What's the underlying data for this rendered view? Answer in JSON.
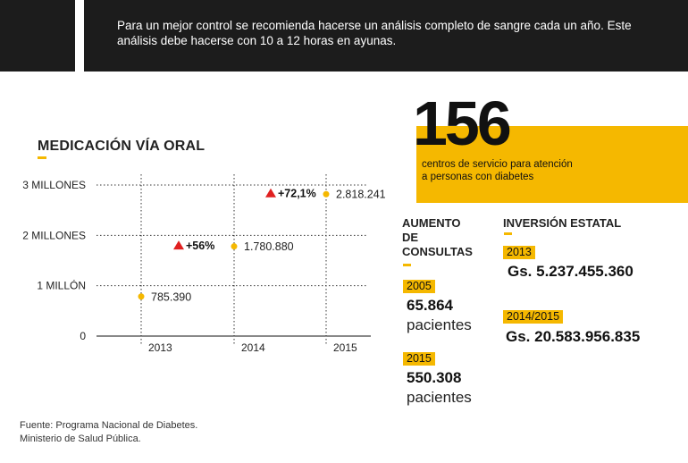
{
  "header": {
    "note": "Para un mejor control se recomienda hacerse un análisis completo de sangre cada un año. Este análisis debe hacerse con 10 a 12 horas en ayunas."
  },
  "chart_data": {
    "type": "scatter",
    "title": "MEDICACIÓN VÍA ORAL",
    "categories": [
      "2013",
      "2014",
      "2015"
    ],
    "values": [
      785390,
      1780880,
      2818241
    ],
    "value_labels": [
      "785.390",
      "1.780.880",
      "2.818.241"
    ],
    "y_ticks": [
      {
        "value": 0,
        "label": "0"
      },
      {
        "value": 1000000,
        "label": "1 MILLÓN"
      },
      {
        "value": 2000000,
        "label": "2 MILLONES"
      },
      {
        "value": 3000000,
        "label": "3 MILLONES"
      }
    ],
    "ylim": [
      0,
      3000000
    ],
    "growth": [
      {
        "year": "2014",
        "label": "+56%"
      },
      {
        "year": "2015",
        "label": "+72,1%"
      }
    ],
    "grid": true,
    "colors": {
      "point": "#f5b800",
      "arrow": "#e02020",
      "grid": "#333333"
    }
  },
  "centers": {
    "count": "156",
    "caption_line1": "centros de servicio para atención",
    "caption_line2": "a personas con diabetes"
  },
  "consultas": {
    "title_line1": "AUMENTO",
    "title_line2": "DE",
    "title_line3": "CONSULTAS",
    "entries": [
      {
        "year": "2005",
        "value": "65.864",
        "unit": "pacientes"
      },
      {
        "year": "2015",
        "value": "550.308",
        "unit": "pacientes"
      }
    ]
  },
  "inversion": {
    "title": "INVERSIÓN ESTATAL",
    "entries": [
      {
        "year": "2013",
        "value": "Gs. 5.237.455.360"
      },
      {
        "year": "2014/2015",
        "value": "Gs. 20.583.956.835"
      }
    ]
  },
  "source": {
    "line1": "Fuente: Programa Nacional de Diabetes.",
    "line2": "Ministerio de Salud Pública."
  },
  "colors": {
    "accent": "#f5b800",
    "dark": "#1c1c1c"
  }
}
